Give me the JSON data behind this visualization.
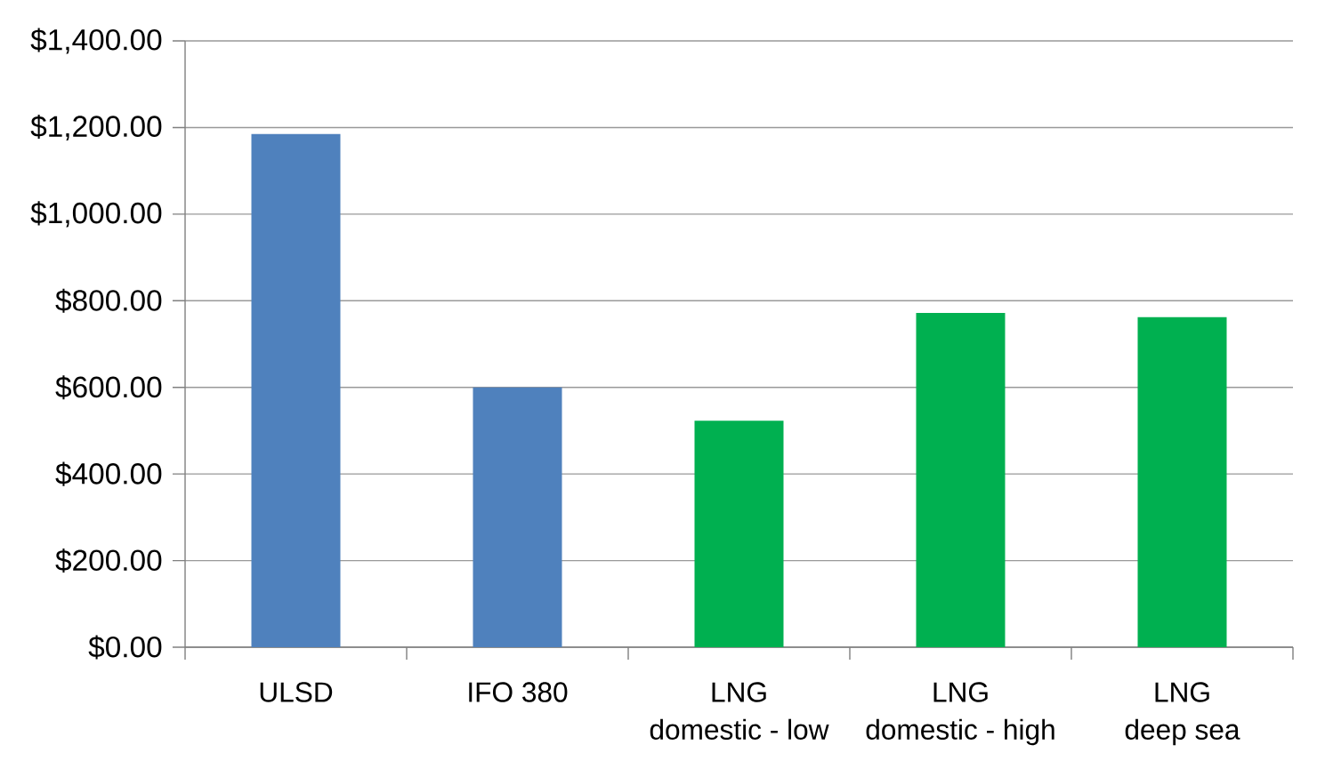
{
  "chart_data": {
    "type": "bar",
    "categories": [
      "ULSD",
      "IFO 380",
      "LNG\ndomestic - low",
      "LNG\ndomestic - high",
      "LNG\ndeep sea"
    ],
    "values": [
      1185,
      600,
      523,
      772,
      762
    ],
    "colors": [
      "#4f81bd",
      "#4f81bd",
      "#00b050",
      "#00b050",
      "#00b050"
    ],
    "ylim": [
      0,
      1400
    ],
    "yticks": [
      {
        "value": 0,
        "label": "$0.00"
      },
      {
        "value": 200,
        "label": "$200.00"
      },
      {
        "value": 400,
        "label": "$400.00"
      },
      {
        "value": 600,
        "label": "$600.00"
      },
      {
        "value": 800,
        "label": "$800.00"
      },
      {
        "value": 1000,
        "label": "$1,000.00"
      },
      {
        "value": 1200,
        "label": "$1,200.00"
      },
      {
        "value": 1400,
        "label": "$1,400.00"
      }
    ],
    "grid": "y"
  }
}
